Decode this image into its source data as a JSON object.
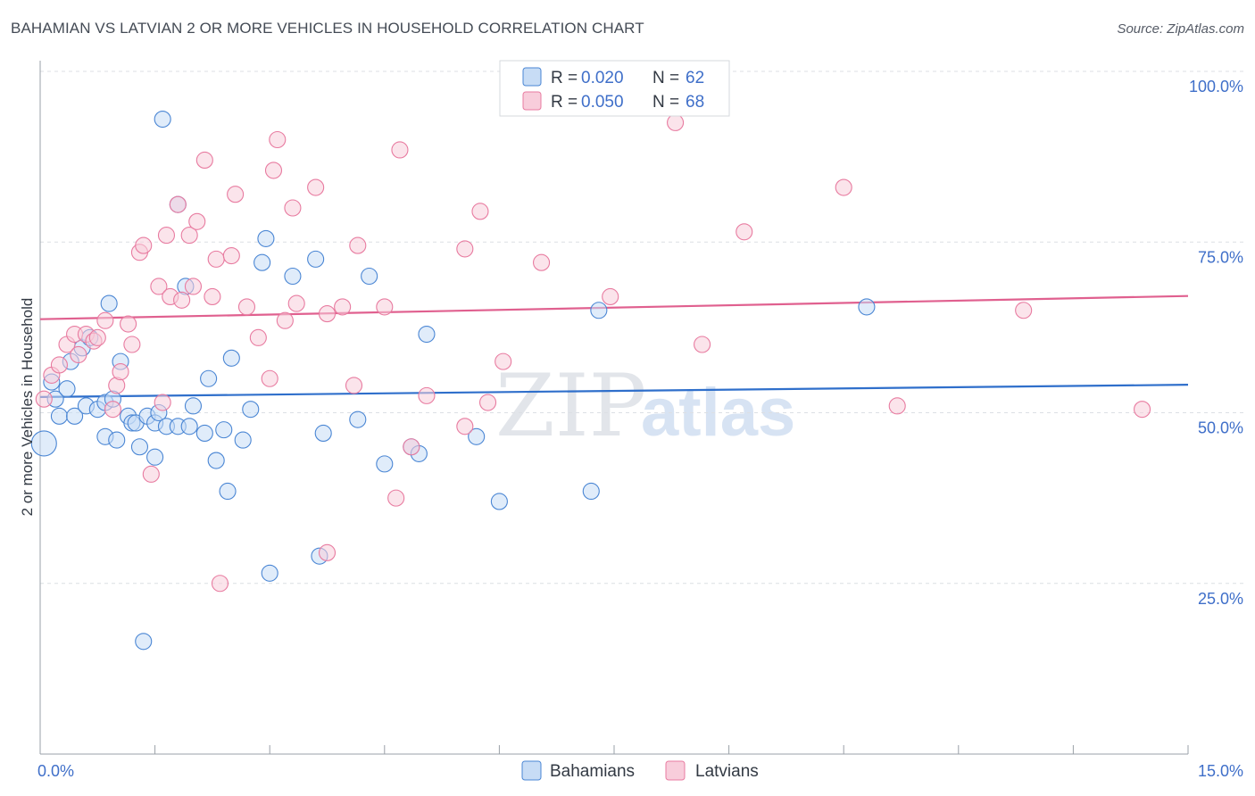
{
  "title": "BAHAMIAN VS LATVIAN 2 OR MORE VEHICLES IN HOUSEHOLD CORRELATION CHART",
  "source": "Source: ZipAtlas.com",
  "watermark": {
    "zip": "ZIP",
    "atlas": "atlas"
  },
  "colors": {
    "blue": "#4a86d4",
    "blue_fill": "#c7dcf5",
    "blue_line": "#2f6fcb",
    "pink": "#e87ba0",
    "pink_fill": "#f8cddb",
    "pink_line": "#e0608f",
    "grid": "#dcdfe4",
    "axis": "#9aa0a8",
    "label": "#3f6fc9"
  },
  "legend_top": [
    {
      "r_label": "R = ",
      "r_value": "0.020",
      "n_label": "N = ",
      "n_value": "62",
      "series": "Bahamians"
    },
    {
      "r_label": "R = ",
      "r_value": "0.050",
      "n_label": "N = ",
      "n_value": "68",
      "series": "Latvians"
    }
  ],
  "chart_data": {
    "type": "scatter",
    "xlabel": "",
    "ylabel": "2 or more Vehicles in Household",
    "xlim": [
      0,
      15
    ],
    "ylim": [
      0,
      100
    ],
    "x_tick_labels": [
      "0.0%",
      "15.0%"
    ],
    "y_tick_labels": [
      "25.0%",
      "50.0%",
      "75.0%",
      "100.0%"
    ],
    "y_tick_values": [
      25,
      50,
      75,
      100
    ],
    "grid": true,
    "legend": [
      "Bahamians",
      "Latvians"
    ],
    "series": [
      {
        "name": "Bahamians",
        "trend": {
          "x": [
            0,
            15
          ],
          "y": [
            52.3,
            54.1
          ]
        },
        "points": [
          [
            0.05,
            45.5
          ],
          [
            0.15,
            54.5
          ],
          [
            0.2,
            52
          ],
          [
            0.25,
            49.5
          ],
          [
            0.35,
            53.5
          ],
          [
            0.4,
            57.5
          ],
          [
            0.45,
            49.5
          ],
          [
            0.55,
            59.5
          ],
          [
            0.6,
            51
          ],
          [
            0.65,
            61
          ],
          [
            0.75,
            50.5
          ],
          [
            0.85,
            51.5
          ],
          [
            0.85,
            46.5
          ],
          [
            0.9,
            66
          ],
          [
            0.95,
            52
          ],
          [
            1.0,
            46
          ],
          [
            1.05,
            57.5
          ],
          [
            1.15,
            49.5
          ],
          [
            1.2,
            48.5
          ],
          [
            1.25,
            48.5
          ],
          [
            1.3,
            45
          ],
          [
            1.35,
            16.5
          ],
          [
            1.4,
            49.5
          ],
          [
            1.5,
            48.5
          ],
          [
            1.5,
            43.5
          ],
          [
            1.55,
            50
          ],
          [
            1.6,
            93
          ],
          [
            1.65,
            48
          ],
          [
            1.8,
            48
          ],
          [
            1.8,
            80.5
          ],
          [
            1.9,
            68.5
          ],
          [
            1.95,
            48
          ],
          [
            2.0,
            51
          ],
          [
            2.15,
            47
          ],
          [
            2.2,
            55
          ],
          [
            2.3,
            43
          ],
          [
            2.4,
            47.5
          ],
          [
            2.45,
            38.5
          ],
          [
            2.5,
            58
          ],
          [
            2.65,
            46
          ],
          [
            2.75,
            50.5
          ],
          [
            2.9,
            72
          ],
          [
            2.95,
            75.5
          ],
          [
            3.0,
            26.5
          ],
          [
            3.3,
            70
          ],
          [
            3.6,
            72.5
          ],
          [
            3.65,
            29
          ],
          [
            3.7,
            47
          ],
          [
            4.15,
            49
          ],
          [
            4.3,
            70
          ],
          [
            4.5,
            42.5
          ],
          [
            4.85,
            45
          ],
          [
            4.95,
            44
          ],
          [
            5.05,
            61.5
          ],
          [
            5.7,
            46.5
          ],
          [
            6.0,
            37
          ],
          [
            7.2,
            38.5
          ],
          [
            7.3,
            65
          ],
          [
            10.8,
            65.5
          ]
        ]
      },
      {
        "name": "Latvians",
        "trend": {
          "x": [
            0,
            15
          ],
          "y": [
            63.7,
            67.1
          ]
        },
        "points": [
          [
            0.05,
            52
          ],
          [
            0.15,
            55.5
          ],
          [
            0.25,
            57
          ],
          [
            0.35,
            60
          ],
          [
            0.45,
            61.5
          ],
          [
            0.5,
            58.5
          ],
          [
            0.6,
            61.5
          ],
          [
            0.7,
            60.5
          ],
          [
            0.75,
            61
          ],
          [
            0.85,
            63.5
          ],
          [
            0.95,
            50.5
          ],
          [
            1.0,
            54
          ],
          [
            1.05,
            56
          ],
          [
            1.15,
            63
          ],
          [
            1.2,
            60
          ],
          [
            1.3,
            73.5
          ],
          [
            1.35,
            74.5
          ],
          [
            1.45,
            41
          ],
          [
            1.55,
            68.5
          ],
          [
            1.6,
            51.5
          ],
          [
            1.65,
            76
          ],
          [
            1.7,
            67
          ],
          [
            1.8,
            80.5
          ],
          [
            1.85,
            66.5
          ],
          [
            1.95,
            76
          ],
          [
            2.0,
            68.5
          ],
          [
            2.05,
            78
          ],
          [
            2.15,
            87
          ],
          [
            2.25,
            67
          ],
          [
            2.3,
            72.5
          ],
          [
            2.35,
            25
          ],
          [
            2.5,
            73
          ],
          [
            2.55,
            82
          ],
          [
            2.7,
            65.5
          ],
          [
            2.85,
            61
          ],
          [
            3.0,
            55
          ],
          [
            3.05,
            85.5
          ],
          [
            3.1,
            90
          ],
          [
            3.2,
            63.5
          ],
          [
            3.3,
            80
          ],
          [
            3.35,
            66
          ],
          [
            3.6,
            83
          ],
          [
            3.75,
            64.5
          ],
          [
            3.75,
            29.5
          ],
          [
            3.95,
            65.5
          ],
          [
            4.1,
            54
          ],
          [
            4.15,
            74.5
          ],
          [
            4.5,
            65.5
          ],
          [
            4.65,
            37.5
          ],
          [
            4.7,
            88.5
          ],
          [
            4.85,
            45
          ],
          [
            5.05,
            52.5
          ],
          [
            5.55,
            74
          ],
          [
            5.55,
            48
          ],
          [
            5.75,
            79.5
          ],
          [
            5.85,
            51.5
          ],
          [
            6.05,
            57.5
          ],
          [
            6.55,
            72
          ],
          [
            7.45,
            67
          ],
          [
            8.3,
            92.5
          ],
          [
            8.65,
            60
          ],
          [
            9.2,
            76.5
          ],
          [
            10.5,
            83
          ],
          [
            11.2,
            51
          ],
          [
            12.85,
            65
          ],
          [
            14.4,
            50.5
          ]
        ]
      }
    ]
  }
}
